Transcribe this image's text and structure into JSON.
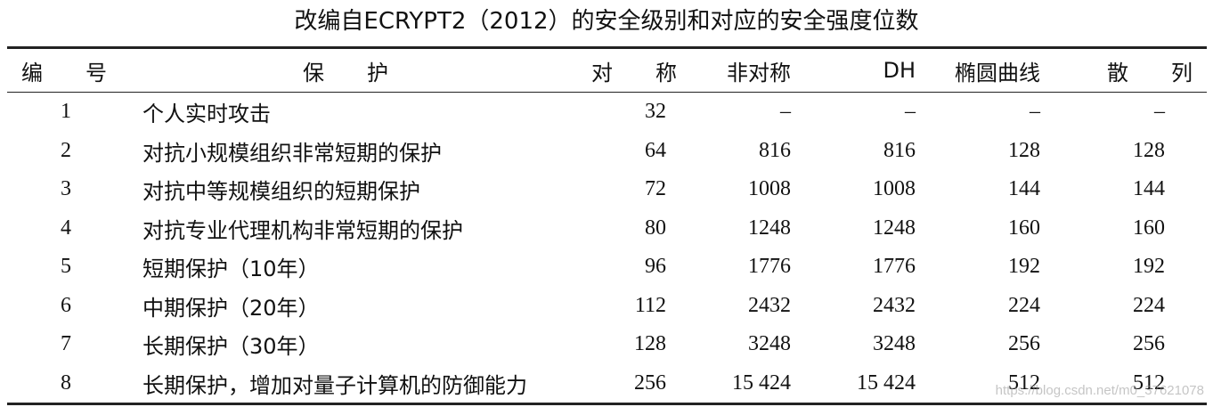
{
  "title": "改编自ECRYPT2（2012）的安全级别和对应的安全强度位数",
  "table": {
    "header": [
      "编　　号",
      "保　　护",
      "对　　称",
      "非对称",
      "DH",
      "椭圆曲线",
      "散　　列"
    ],
    "rows": [
      [
        "1",
        "个人实时攻击",
        "32",
        "–",
        "–",
        "–",
        "–"
      ],
      [
        "2",
        "对抗小规模组织非常短期的保护",
        "64",
        "816",
        "816",
        "128",
        "128"
      ],
      [
        "3",
        "对抗中等规模组织的短期保护",
        "72",
        "1008",
        "1008",
        "144",
        "144"
      ],
      [
        "4",
        "对抗专业代理机构非常短期的保护",
        "80",
        "1248",
        "1248",
        "160",
        "160"
      ],
      [
        "5",
        "短期保护（10年）",
        "96",
        "1776",
        "1776",
        "192",
        "192"
      ],
      [
        "6",
        "中期保护（20年）",
        "112",
        "2432",
        "2432",
        "224",
        "224"
      ],
      [
        "7",
        "长期保护（30年）",
        "128",
        "3248",
        "3248",
        "256",
        "256"
      ],
      [
        "8",
        "长期保护，增加对量子计算机的防御能力",
        "256",
        "15 424",
        "15 424",
        "512",
        "512"
      ]
    ]
  },
  "watermark": "https://blog.csdn.net/m0_37621078"
}
